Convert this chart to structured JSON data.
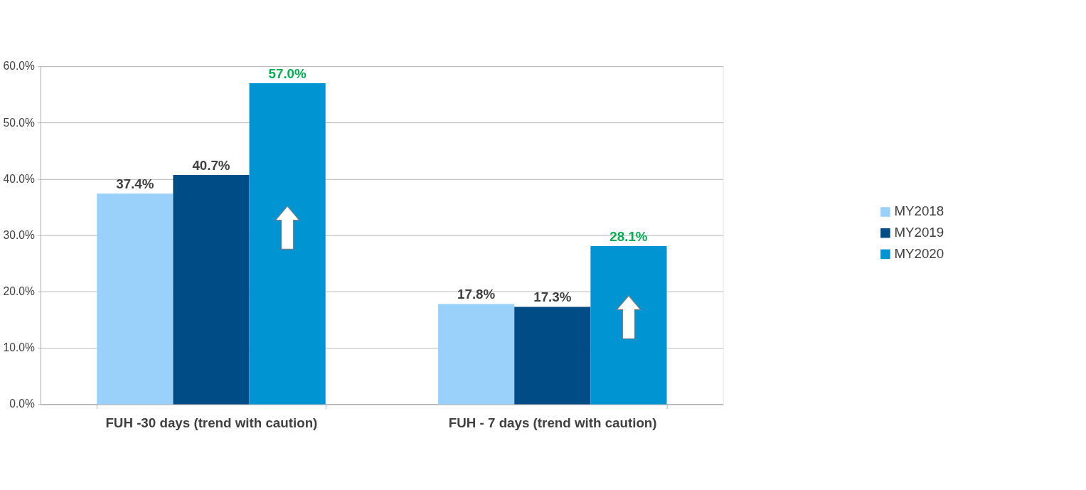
{
  "chart_data": {
    "type": "bar",
    "categories": [
      "FUH -30 days (trend with caution)",
      "FUH - 7 days (trend with caution)"
    ],
    "series": [
      {
        "name": "MY2018",
        "color": "#99d1fa",
        "values": [
          37.4,
          17.8
        ],
        "value_labels": [
          "37.4%",
          "17.8%"
        ]
      },
      {
        "name": "MY2019",
        "color": "#004c87",
        "values": [
          40.7,
          17.3
        ],
        "value_labels": [
          "40.7%",
          "17.3%"
        ]
      },
      {
        "name": "MY2020",
        "color": "#0094d3",
        "values": [
          57.0,
          28.1
        ],
        "value_labels": [
          "57.0%",
          "28.1%"
        ]
      }
    ],
    "ylim": [
      0,
      60
    ],
    "yticks": [
      {
        "value": 0,
        "label": "0.0%"
      },
      {
        "value": 10,
        "label": "10.0%"
      },
      {
        "value": 20,
        "label": "20.0%"
      },
      {
        "value": 30,
        "label": "30.0%"
      },
      {
        "value": 40,
        "label": "40.0%"
      },
      {
        "value": 50,
        "label": "50.0%"
      },
      {
        "value": 60,
        "label": "60.0%"
      }
    ],
    "grid": "y",
    "legend": "right"
  }
}
